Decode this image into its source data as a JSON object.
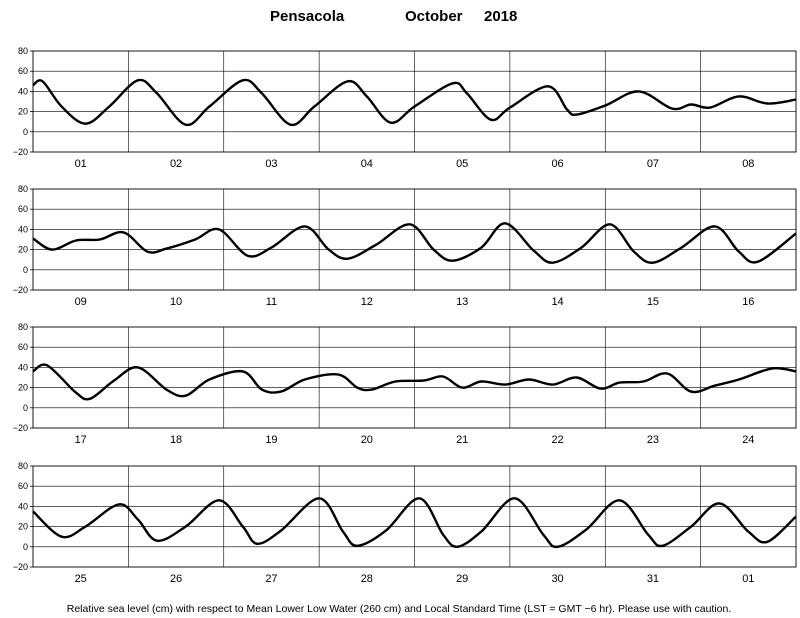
{
  "header": {
    "station": "Pensacola",
    "month": "October",
    "year": "2018"
  },
  "footer": {
    "caption": "Relative sea level (cm) with respect to Mean Lower Low Water (260 cm) and Local Standard Time (LST = GMT −6 hr). Please use with caution."
  },
  "chart_data": [
    {
      "type": "line",
      "title": "",
      "days": [
        "01",
        "02",
        "03",
        "04",
        "05",
        "06",
        "07",
        "08"
      ],
      "ylim": [
        -20,
        80
      ],
      "yticks": [
        -20,
        0,
        20,
        40,
        60,
        80
      ],
      "grid": true,
      "series": [
        {
          "points": [
            [
              0,
              46
            ],
            [
              0.1,
              50
            ],
            [
              0.3,
              25
            ],
            [
              0.55,
              8
            ],
            [
              0.8,
              25
            ],
            [
              1.1,
              51
            ],
            [
              1.3,
              38
            ],
            [
              1.6,
              7
            ],
            [
              1.85,
              25
            ],
            [
              2.2,
              51
            ],
            [
              2.4,
              38
            ],
            [
              2.7,
              7
            ],
            [
              2.95,
              25
            ],
            [
              3.3,
              50
            ],
            [
              3.5,
              35
            ],
            [
              3.75,
              9
            ],
            [
              4.0,
              25
            ],
            [
              4.4,
              48
            ],
            [
              4.55,
              38
            ],
            [
              4.8,
              12
            ],
            [
              5.0,
              24
            ],
            [
              5.4,
              45
            ],
            [
              5.6,
              22
            ],
            [
              5.7,
              17
            ],
            [
              6.0,
              26
            ],
            [
              6.35,
              40
            ],
            [
              6.7,
              23
            ],
            [
              6.9,
              27
            ],
            [
              7.1,
              24
            ],
            [
              7.4,
              35
            ],
            [
              7.7,
              28
            ],
            [
              8.0,
              32
            ]
          ]
        }
      ]
    },
    {
      "type": "line",
      "title": "",
      "days": [
        "09",
        "10",
        "11",
        "12",
        "13",
        "14",
        "15",
        "16"
      ],
      "ylim": [
        -20,
        80
      ],
      "yticks": [
        -20,
        0,
        20,
        40,
        60,
        80
      ],
      "grid": true,
      "series": [
        {
          "points": [
            [
              0,
              31
            ],
            [
              0.2,
              20
            ],
            [
              0.45,
              29
            ],
            [
              0.7,
              30
            ],
            [
              0.95,
              37
            ],
            [
              1.2,
              18
            ],
            [
              1.4,
              21
            ],
            [
              1.7,
              30
            ],
            [
              1.95,
              40
            ],
            [
              2.25,
              14
            ],
            [
              2.5,
              22
            ],
            [
              2.85,
              43
            ],
            [
              3.1,
              20
            ],
            [
              3.3,
              11
            ],
            [
              3.6,
              25
            ],
            [
              3.95,
              45
            ],
            [
              4.2,
              20
            ],
            [
              4.4,
              9
            ],
            [
              4.7,
              22
            ],
            [
              4.95,
              46
            ],
            [
              5.25,
              19
            ],
            [
              5.45,
              7
            ],
            [
              5.75,
              22
            ],
            [
              6.05,
              45
            ],
            [
              6.3,
              18
            ],
            [
              6.5,
              7
            ],
            [
              6.8,
              22
            ],
            [
              7.15,
              43
            ],
            [
              7.4,
              18
            ],
            [
              7.6,
              8
            ],
            [
              8.0,
              36
            ]
          ]
        }
      ]
    },
    {
      "type": "line",
      "title": "",
      "days": [
        "17",
        "18",
        "19",
        "20",
        "21",
        "22",
        "23",
        "24"
      ],
      "ylim": [
        -20,
        80
      ],
      "yticks": [
        -20,
        0,
        20,
        40,
        60,
        80
      ],
      "grid": true,
      "series": [
        {
          "points": [
            [
              0,
              36
            ],
            [
              0.15,
              42
            ],
            [
              0.45,
              15
            ],
            [
              0.6,
              9
            ],
            [
              0.85,
              27
            ],
            [
              1.1,
              40
            ],
            [
              1.4,
              18
            ],
            [
              1.6,
              12
            ],
            [
              1.85,
              28
            ],
            [
              2.2,
              36
            ],
            [
              2.4,
              18
            ],
            [
              2.6,
              16
            ],
            [
              2.85,
              28
            ],
            [
              3.2,
              33
            ],
            [
              3.4,
              20
            ],
            [
              3.55,
              18
            ],
            [
              3.8,
              26
            ],
            [
              4.1,
              27
            ],
            [
              4.3,
              31
            ],
            [
              4.5,
              20
            ],
            [
              4.7,
              26
            ],
            [
              4.95,
              23
            ],
            [
              5.2,
              28
            ],
            [
              5.45,
              23
            ],
            [
              5.7,
              30
            ],
            [
              5.95,
              19
            ],
            [
              6.15,
              25
            ],
            [
              6.4,
              26
            ],
            [
              6.65,
              34
            ],
            [
              6.9,
              16
            ],
            [
              7.15,
              22
            ],
            [
              7.4,
              28
            ],
            [
              7.75,
              39
            ],
            [
              8.0,
              36
            ]
          ]
        }
      ]
    },
    {
      "type": "line",
      "title": "",
      "days": [
        "25",
        "26",
        "27",
        "28",
        "29",
        "30",
        "31",
        "01"
      ],
      "ylim": [
        -20,
        80
      ],
      "yticks": [
        -20,
        0,
        20,
        40,
        60,
        80
      ],
      "grid": true,
      "series": [
        {
          "points": [
            [
              0,
              35
            ],
            [
              0.3,
              10
            ],
            [
              0.55,
              20
            ],
            [
              0.9,
              42
            ],
            [
              1.1,
              27
            ],
            [
              1.3,
              6
            ],
            [
              1.6,
              20
            ],
            [
              1.95,
              46
            ],
            [
              2.2,
              20
            ],
            [
              2.35,
              3
            ],
            [
              2.6,
              16
            ],
            [
              3.0,
              48
            ],
            [
              3.25,
              15
            ],
            [
              3.4,
              1
            ],
            [
              3.7,
              16
            ],
            [
              4.05,
              48
            ],
            [
              4.3,
              12
            ],
            [
              4.45,
              0
            ],
            [
              4.7,
              15
            ],
            [
              5.05,
              48
            ],
            [
              5.35,
              12
            ],
            [
              5.5,
              0
            ],
            [
              5.8,
              17
            ],
            [
              6.15,
              46
            ],
            [
              6.45,
              12
            ],
            [
              6.6,
              1
            ],
            [
              6.9,
              20
            ],
            [
              7.2,
              43
            ],
            [
              7.5,
              15
            ],
            [
              7.7,
              5
            ],
            [
              8.0,
              30
            ]
          ]
        }
      ]
    }
  ]
}
